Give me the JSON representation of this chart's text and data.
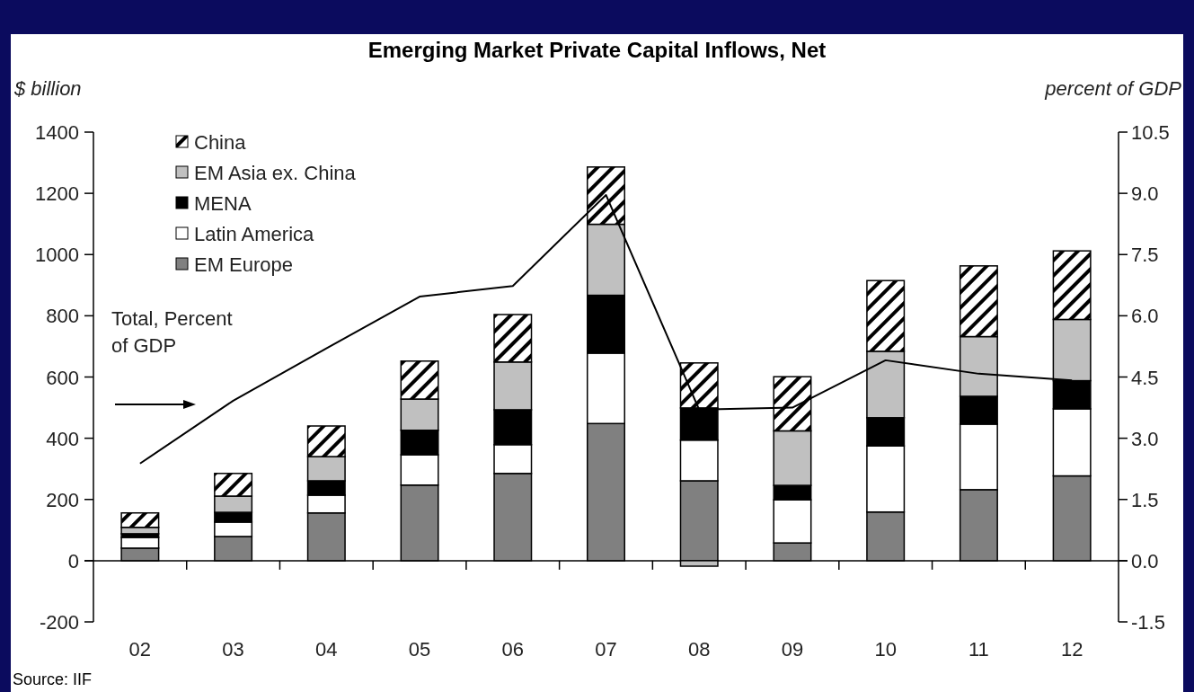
{
  "chart_data": {
    "type": "bar",
    "title": "Emerging Market Private Capital Inflows, Net",
    "ylabel": "$ billion",
    "y2label": "percent of GDP",
    "categories": [
      "02",
      "03",
      "04",
      "05",
      "06",
      "07",
      "08",
      "09",
      "10",
      "11",
      "12"
    ],
    "stacked": true,
    "legend": "top left",
    "series": [
      {
        "name": "EM Europe",
        "color": "#808080",
        "values": [
          41,
          79,
          156,
          247,
          285,
          448,
          261,
          58,
          159,
          232,
          277
        ]
      },
      {
        "name": "Latin America",
        "color": "#ffffff",
        "values": [
          35,
          47,
          58,
          99,
          94,
          230,
          133,
          141,
          216,
          214,
          219
        ]
      },
      {
        "name": "MENA",
        "color": "#000000",
        "values": [
          12,
          32,
          47,
          80,
          114,
          189,
          105,
          47,
          92,
          91,
          92
        ]
      },
      {
        "name": "EM Asia ex. China",
        "color": "#c0c0c0",
        "values": [
          21,
          53,
          79,
          102,
          156,
          232,
          -18,
          178,
          217,
          195,
          200
        ]
      },
      {
        "name": "China",
        "color": "#000000",
        "values": [
          47,
          74,
          100,
          124,
          155,
          187,
          147,
          177,
          231,
          231,
          224
        ]
      },
      {
        "type": "line",
        "axis": "y2",
        "color": "#000000",
        "values": [
          2.38,
          3.92,
          5.2,
          6.47,
          6.73,
          8.96,
          3.7,
          3.75,
          4.91,
          4.58,
          4.42
        ]
      }
    ],
    "ylim": [
      -200,
      1400
    ],
    "yticks": [
      -200,
      0,
      200,
      400,
      600,
      800,
      1000,
      1200,
      1400
    ],
    "y2lim": [
      -1.5,
      10.5
    ],
    "y2ticks": [
      -1.5,
      {
        "value": 0,
        "label": "0.0"
      },
      1.5,
      {
        "value": 3,
        "label": "3.0"
      },
      4.5,
      {
        "value": 6,
        "label": "6.0"
      },
      7.5,
      {
        "value": 9,
        "label": "9.0"
      },
      10.5
    ],
    "annotations": [
      "Total, Percent of GDP",
      "Source: IIF"
    ]
  }
}
